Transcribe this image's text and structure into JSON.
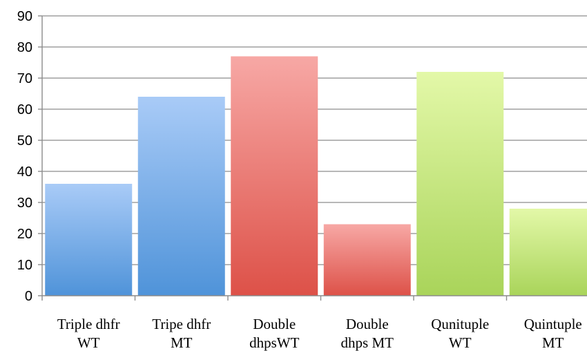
{
  "chart_data": {
    "type": "bar",
    "categories": [
      [
        "Triple dhfr",
        "WT"
      ],
      [
        "Tripe dhfr",
        "MT"
      ],
      [
        "Double",
        "dhpsWT"
      ],
      [
        "Double",
        "dhps MT"
      ],
      [
        "Qunituple",
        "WT"
      ],
      [
        "Quintuple",
        "MT"
      ]
    ],
    "values": [
      36,
      64,
      77,
      23,
      72,
      28
    ],
    "bar_colors": [
      [
        "#a9cbf7",
        "#4f93d9"
      ],
      [
        "#a9cbf7",
        "#4f93d9"
      ],
      [
        "#f7a8a5",
        "#dd5148"
      ],
      [
        "#f7a8a5",
        "#dd5148"
      ],
      [
        "#e3f8a8",
        "#a9d45a"
      ],
      [
        "#e3f8a8",
        "#a9d45a"
      ]
    ],
    "ylim": [
      0,
      90
    ],
    "yticks": [
      0,
      10,
      20,
      30,
      40,
      50,
      60,
      70,
      80,
      90
    ],
    "grid": true,
    "legend": "none",
    "title": "",
    "xlabel": "",
    "ylabel": ""
  }
}
